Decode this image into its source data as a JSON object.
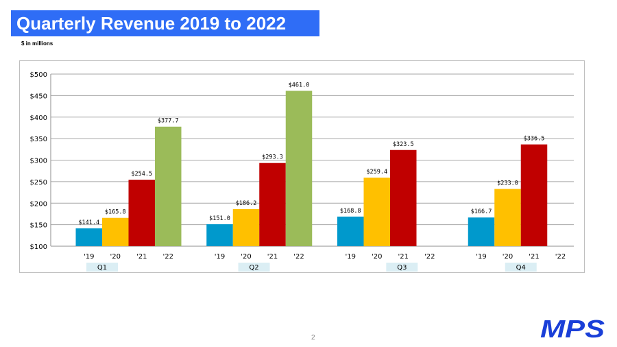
{
  "slide": {
    "title": "Quarterly Revenue 2019 to 2022",
    "subtitle": "$ in millions",
    "page_number": "2",
    "logo_text": "MPS",
    "colors": {
      "title_bar": "#2f6df6",
      "series_2019": "#0099cc",
      "series_2020": "#ffc000",
      "series_2021": "#c00000",
      "series_2022": "#9bbb59",
      "quarter_label_bg": "#dbeef4",
      "logo": "#1a3fd8"
    }
  },
  "chart_data": {
    "type": "bar",
    "groups": [
      "Q1",
      "Q2",
      "Q3",
      "Q4"
    ],
    "series_labels": [
      "'19",
      "'20",
      "'21",
      "'22"
    ],
    "values": [
      [
        141.4,
        165.8,
        254.5,
        377.7
      ],
      [
        151.0,
        186.2,
        293.3,
        461.0
      ],
      [
        168.8,
        259.4,
        323.5,
        null
      ],
      [
        166.7,
        233.0,
        336.5,
        null
      ]
    ],
    "data_labels": [
      [
        "$141.4",
        "$165.8",
        "$254.5",
        "$377.7"
      ],
      [
        "$151.0",
        "$186.2",
        "$293.3",
        "$461.0"
      ],
      [
        "$168.8",
        "$259.4",
        "$323.5",
        ""
      ],
      [
        "$166.7",
        "$233.0",
        "$336.5",
        ""
      ]
    ],
    "ylim": [
      100,
      500
    ],
    "yticks": [
      100,
      150,
      200,
      250,
      300,
      350,
      400,
      450,
      500
    ],
    "ytick_labels": [
      "$100",
      "$150",
      "$200",
      "$250",
      "$300",
      "$350",
      "$400",
      "$450",
      "$500"
    ],
    "grid": true,
    "legend": "none",
    "title": "",
    "xlabel": "",
    "ylabel": ""
  }
}
